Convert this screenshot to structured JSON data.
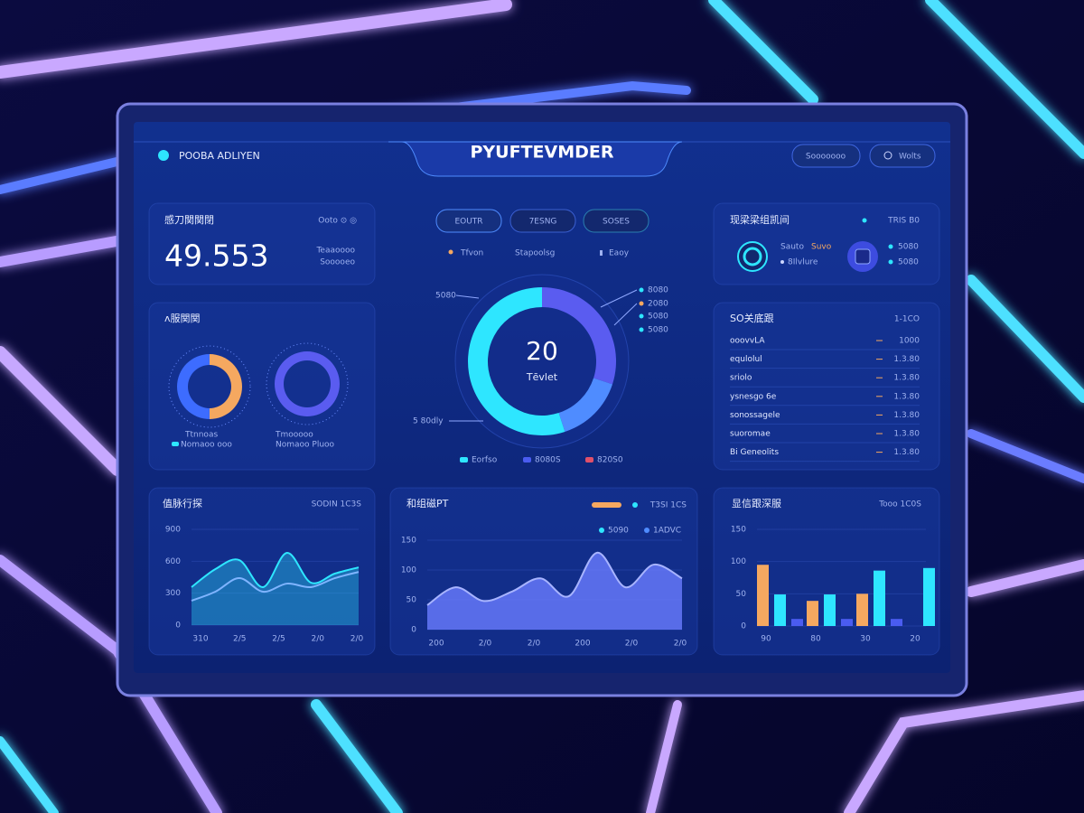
{
  "header": {
    "brand": "POOBA ADLIYEN",
    "title": "PYUFTEVMDER",
    "buttons": [
      "Sooooooo",
      "Wolts"
    ]
  },
  "kpi": {
    "label": "感刀関関閉",
    "value": "49.553",
    "legend": "Ooto ⊙ ◎",
    "notes": [
      "Teaaoooo",
      "Sooooeo"
    ]
  },
  "rings": {
    "title": "ᴧ服関関",
    "items": [
      {
        "type": "pie",
        "values": [
          50,
          50
        ],
        "colors": [
          "#f5a860",
          "#3d6cff"
        ],
        "label": "Ttnnoas",
        "sub": "Nomaoo ooo"
      },
      {
        "type": "pie",
        "values": [
          100
        ],
        "colors": [
          "#5a5cf0"
        ],
        "label": "Tmooooo",
        "sub": "Nomaoo Pluoo"
      }
    ]
  },
  "center": {
    "tabs": [
      "EOUTR",
      "7ESNG",
      "SOSES"
    ],
    "filters": [
      "Tfvon",
      "Stapoolsg",
      "Eaoy"
    ],
    "donut": {
      "type": "pie",
      "values": [
        30,
        15,
        55
      ],
      "colors": [
        "#5a5cf0",
        "#4f8cff",
        "#2ee6ff"
      ],
      "center_value": "20",
      "center_label": "Tēvlet",
      "left_labels": [
        "5080",
        "5 80dly"
      ],
      "right_labels": [
        "8080",
        "2080",
        "5080",
        "5080"
      ],
      "legend": [
        "Eorfso",
        "8080S",
        "820S0"
      ]
    }
  },
  "status": {
    "title": "现梁梁组凯间",
    "legend": "TRIS B0",
    "items": [
      "Sauto",
      "Suvo",
      "8Ilvlure",
      "5080",
      "5080"
    ]
  },
  "list": {
    "title": "SO关底跟",
    "legend": "1-1CO",
    "rows": [
      [
        "ooovvLA",
        "1000"
      ],
      [
        "equlolul",
        "1.3.80"
      ],
      [
        "sriolo",
        "1.3.80"
      ],
      [
        "ysnesgo 6e",
        "1.3.80"
      ],
      [
        "sonossagele",
        "1.3.80"
      ],
      [
        "suoromae",
        "1.3.80"
      ],
      [
        "Bi Geneolits",
        "1.3.80"
      ]
    ]
  },
  "charts": [
    {
      "type": "line",
      "title": "值脉行探",
      "legend": "SODIN 1C3S",
      "ylim": [
        0,
        900
      ],
      "yticks": [
        0,
        300,
        600,
        900
      ],
      "xlabels": [
        "310",
        "2/5",
        "2/5",
        "2/0",
        "2/0"
      ],
      "series": [
        {
          "color": "#2ee6ff",
          "values": [
            357,
            526,
            611,
            357,
            679,
            399,
            484,
            543
          ]
        },
        {
          "color": "#7fb4ff",
          "values": [
            229,
            314,
            441,
            314,
            390,
            357,
            441,
            500
          ]
        }
      ]
    },
    {
      "type": "area",
      "title": "和组磁PT",
      "legend": [
        "T3SI 1CS",
        "5090",
        "1ADVC"
      ],
      "ylim": [
        0,
        150
      ],
      "yticks": [
        0,
        50,
        100,
        150
      ],
      "xlabels": [
        "200",
        "2/0",
        "2/0",
        "200",
        "2/0",
        "2/0"
      ],
      "series": [
        {
          "color": "#6a7cff",
          "values": [
            41,
            71,
            48,
            64,
            86,
            56,
            129,
            71,
            109,
            86
          ]
        }
      ]
    },
    {
      "type": "bar",
      "title": "显信跟深服",
      "legend": "Tooo 1C0S",
      "ylim": [
        0,
        150
      ],
      "yticks": [
        0,
        50,
        100,
        150
      ],
      "categories": [
        "90",
        "80",
        "30",
        "20"
      ],
      "series": [
        {
          "color": "#f5a860",
          "values": [
            95,
            39,
            50,
            null
          ]
        },
        {
          "color": "#2ee6ff",
          "values": [
            49,
            49,
            86,
            90
          ]
        },
        {
          "color": "#4a5cf0",
          "values": [
            11,
            11,
            11,
            null
          ]
        }
      ]
    }
  ]
}
